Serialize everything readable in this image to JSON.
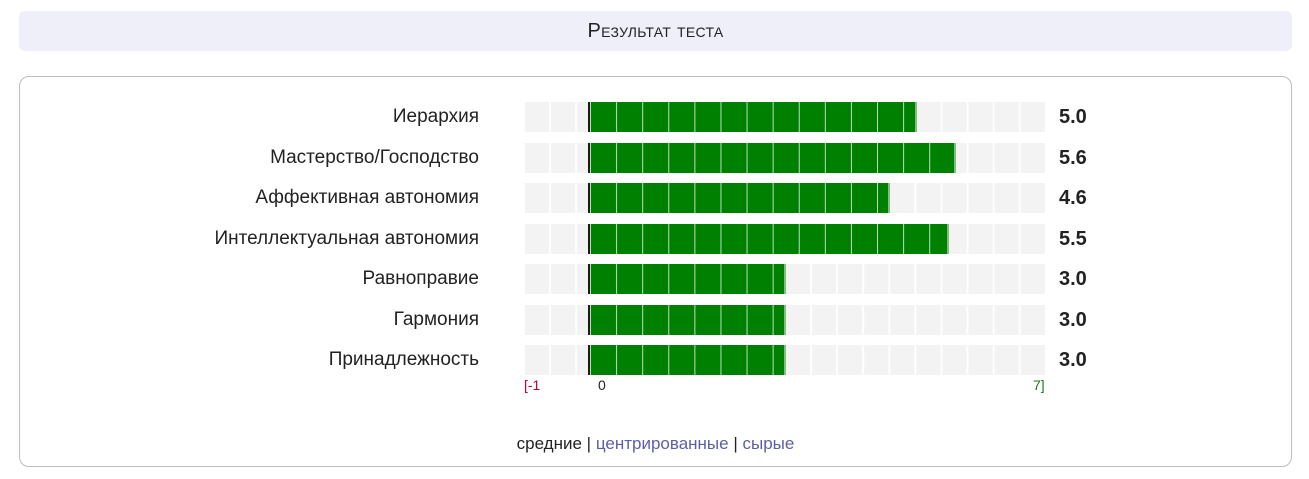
{
  "header": {
    "title": "Результат теста"
  },
  "chart_data": {
    "type": "bar",
    "orientation": "horizontal",
    "categories": [
      "Иерархия",
      "Мастерство/Господство",
      "Аффективная автономия",
      "Интеллектуальная автономия",
      "Равноправие",
      "Гармония",
      "Принадлежность"
    ],
    "values": [
      5.0,
      5.6,
      4.6,
      5.5,
      3.0,
      3.0,
      3.0
    ],
    "value_labels": [
      "5.0",
      "5.6",
      "4.6",
      "5.5",
      "3.0",
      "3.0",
      "3.0"
    ],
    "xlim": [
      -1,
      7
    ],
    "axis_labels": {
      "min": "[-1",
      "zero": "0",
      "max": "7]"
    },
    "bar_color": "#008000",
    "grid": true
  },
  "footer": {
    "current": "средние",
    "separator": "|",
    "link_centered": "центрированные",
    "link_raw": "сырые"
  }
}
